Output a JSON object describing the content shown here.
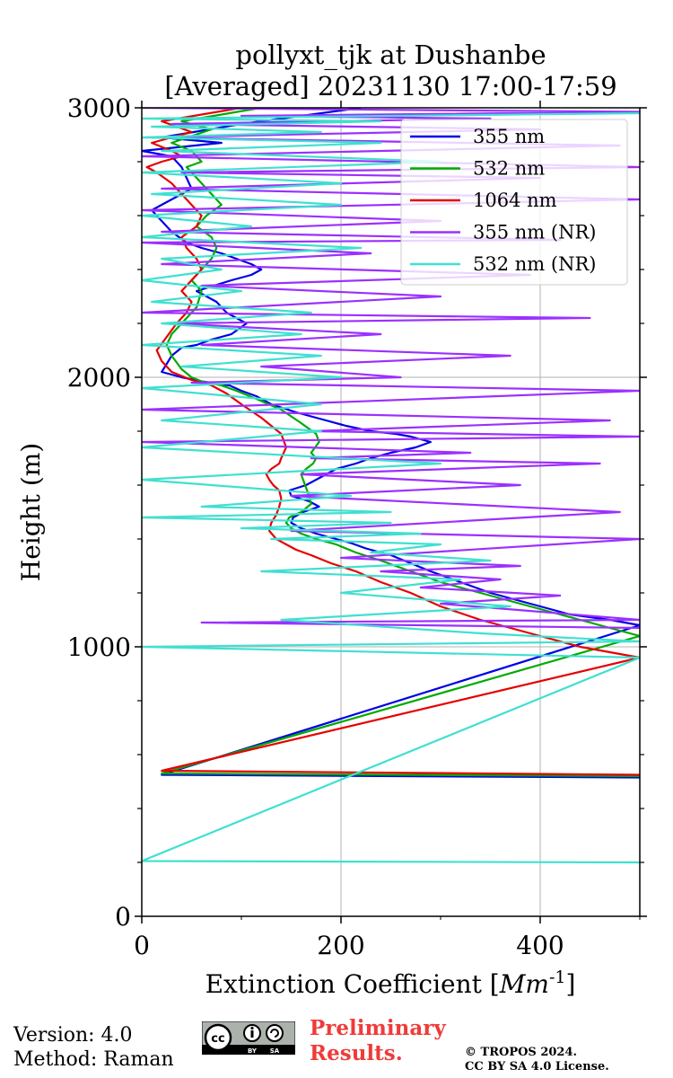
{
  "chart_data": {
    "type": "line",
    "title": "pollyxt_tjk at Dushanbe",
    "subtitle": "[Averaged] 20231130 17:00-17:59",
    "xlabel_prefix": "Extinction Coefficient [",
    "xlabel_unit": "Mm",
    "xlabel_exp": "-1",
    "xlabel_suffix": "]",
    "ylabel": "Height (m)",
    "xlim": [
      0,
      500
    ],
    "ylim": [
      0,
      3000
    ],
    "xticks": [
      "0",
      "200",
      "400"
    ],
    "yticks": [
      "0",
      "1000",
      "2000",
      "3000"
    ],
    "grid": true,
    "legend_position": "top-right",
    "series": [
      {
        "name": "355 nm",
        "color": "#0000e6",
        "x": [
          500,
          20,
          500,
          470,
          430,
          390,
          350,
          320,
          290,
          270,
          250,
          225,
          210,
          195,
          175,
          160,
          150,
          152,
          162,
          178,
          168,
          150,
          148,
          165,
          175,
          185,
          195,
          215,
          230,
          250,
          275,
          290,
          270,
          255,
          230,
          205,
          185,
          155,
          130,
          115,
          100,
          88,
          60,
          40,
          20,
          25,
          30,
          40,
          55,
          70,
          90,
          105,
          85,
          75,
          55,
          90,
          110,
          120,
          110,
          95,
          80,
          60,
          45,
          30,
          20,
          10,
          30,
          50,
          45,
          40,
          35,
          30,
          0,
          80,
          20,
          100,
          220
        ],
        "y": [
          515,
          525,
          1080,
          1100,
          1120,
          1160,
          1200,
          1240,
          1280,
          1310,
          1340,
          1365,
          1385,
          1400,
          1420,
          1440,
          1460,
          1480,
          1500,
          1520,
          1540,
          1560,
          1580,
          1600,
          1620,
          1640,
          1660,
          1680,
          1700,
          1720,
          1740,
          1760,
          1780,
          1790,
          1800,
          1820,
          1840,
          1870,
          1900,
          1930,
          1950,
          1970,
          1985,
          2000,
          2020,
          2050,
          2080,
          2110,
          2120,
          2140,
          2160,
          2200,
          2240,
          2280,
          2320,
          2360,
          2380,
          2400,
          2420,
          2440,
          2460,
          2480,
          2500,
          2540,
          2580,
          2620,
          2660,
          2700,
          2740,
          2780,
          2800,
          2820,
          2840,
          2870,
          2890,
          2940,
          3000
        ]
      },
      {
        "name": "532 nm",
        "color": "#00aa00",
        "x": [
          500,
          20,
          500,
          460,
          420,
          380,
          340,
          300,
          270,
          240,
          215,
          195,
          175,
          160,
          150,
          145,
          148,
          160,
          170,
          168,
          165,
          162,
          160,
          165,
          172,
          175,
          170,
          178,
          175,
          160,
          140,
          115,
          95,
          80,
          60,
          50,
          40,
          30,
          25,
          30,
          40,
          55,
          60,
          50,
          60,
          70,
          75,
          70,
          55,
          65,
          80,
          70,
          60,
          50,
          45,
          60,
          55,
          50,
          30,
          70,
          40,
          120
        ],
        "y": [
          520,
          530,
          1040,
          1080,
          1120,
          1160,
          1200,
          1240,
          1280,
          1320,
          1350,
          1380,
          1400,
          1420,
          1440,
          1460,
          1480,
          1500,
          1530,
          1560,
          1590,
          1620,
          1640,
          1660,
          1680,
          1700,
          1720,
          1760,
          1790,
          1830,
          1880,
          1920,
          1950,
          1970,
          1985,
          2000,
          2030,
          2080,
          2120,
          2160,
          2200,
          2260,
          2320,
          2360,
          2400,
          2440,
          2480,
          2520,
          2560,
          2600,
          2640,
          2680,
          2720,
          2760,
          2780,
          2800,
          2820,
          2840,
          2870,
          2920,
          2950,
          3000
        ]
      },
      {
        "name": "1064 nm",
        "color": "#e60000",
        "x": [
          500,
          20,
          500,
          440,
          390,
          340,
          300,
          270,
          240,
          215,
          190,
          170,
          155,
          145,
          135,
          128,
          130,
          135,
          138,
          140,
          138,
          132,
          128,
          125,
          130,
          138,
          140,
          145,
          140,
          120,
          100,
          85,
          70,
          50,
          30,
          20,
          15,
          25,
          35,
          45,
          50,
          40,
          50,
          60,
          55,
          45,
          40,
          55,
          60,
          50,
          40,
          30,
          15,
          5,
          20,
          40,
          30,
          10,
          50,
          20,
          100
        ],
        "y": [
          525,
          540,
          960,
          1000,
          1050,
          1100,
          1150,
          1200,
          1240,
          1280,
          1310,
          1340,
          1360,
          1380,
          1400,
          1430,
          1460,
          1490,
          1520,
          1550,
          1580,
          1600,
          1620,
          1640,
          1660,
          1680,
          1700,
          1740,
          1790,
          1850,
          1900,
          1940,
          1970,
          1990,
          2020,
          2060,
          2100,
          2150,
          2200,
          2240,
          2280,
          2320,
          2360,
          2400,
          2440,
          2480,
          2520,
          2560,
          2600,
          2640,
          2680,
          2720,
          2760,
          2780,
          2800,
          2820,
          2840,
          2870,
          2910,
          2950,
          3000
        ]
      },
      {
        "name": "355 nm (NR)",
        "color": "#9b30ff",
        "x": [
          500,
          60,
          500,
          400,
          300,
          420,
          280,
          360,
          240,
          380,
          200,
          500,
          150,
          480,
          150,
          380,
          160,
          460,
          170,
          330,
          0,
          500,
          170,
          470,
          0,
          500,
          50,
          260,
          120,
          370,
          60,
          240,
          30,
          450,
          0,
          300,
          60,
          390,
          20,
          230,
          0,
          420,
          20,
          300,
          0,
          500,
          20,
          400,
          40,
          500,
          0,
          480,
          10,
          400,
          30,
          350,
          100,
          500,
          0
        ],
        "y": [
          1070,
          1090,
          1100,
          1130,
          1160,
          1190,
          1220,
          1250,
          1280,
          1300,
          1330,
          1400,
          1430,
          1500,
          1560,
          1600,
          1640,
          1680,
          1700,
          1720,
          1760,
          1780,
          1800,
          1840,
          1880,
          1950,
          1980,
          2000,
          2040,
          2080,
          2120,
          2160,
          2200,
          2220,
          2240,
          2300,
          2340,
          2380,
          2420,
          2460,
          2500,
          2510,
          2540,
          2580,
          2620,
          2660,
          2700,
          2740,
          2760,
          2780,
          2820,
          2860,
          2890,
          2920,
          2940,
          2960,
          2970,
          2985,
          3000
        ]
      },
      {
        "name": "532 nm (NR)",
        "color": "#40e0d0",
        "x": [
          500,
          0,
          500,
          0,
          500,
          340,
          140,
          370,
          200,
          320,
          120,
          350,
          230,
          300,
          130,
          280,
          100,
          250,
          0,
          250,
          60,
          210,
          0,
          300,
          0,
          180,
          20,
          180,
          0,
          200,
          40,
          180,
          0,
          160,
          20,
          170,
          10,
          100,
          0,
          80,
          20,
          220,
          0,
          110,
          0,
          200,
          10,
          200,
          0,
          300,
          20,
          240,
          0,
          180,
          10,
          240,
          0,
          500
        ],
        "y": [
          200,
          205,
          960,
          1000,
          1020,
          1050,
          1100,
          1150,
          1200,
          1250,
          1280,
          1320,
          1350,
          1380,
          1400,
          1420,
          1440,
          1460,
          1480,
          1500,
          1520,
          1560,
          1620,
          1680,
          1740,
          1800,
          1840,
          1900,
          1960,
          2000,
          2040,
          2080,
          2120,
          2160,
          2200,
          2240,
          2280,
          2320,
          2360,
          2400,
          2440,
          2480,
          2520,
          2560,
          2600,
          2640,
          2680,
          2720,
          2760,
          2800,
          2840,
          2870,
          2890,
          2910,
          2930,
          2950,
          2960,
          2980
        ]
      }
    ]
  },
  "footer": {
    "version": "Version: 4.0",
    "method": "Method: Raman",
    "preliminary_line1": "Preliminary",
    "preliminary_line2": "Results.",
    "copyright_line1": "© TROPOS 2024.",
    "copyright_line2": "CC BY SA 4.0 License.",
    "license_badge": "cc-by-sa-badge"
  }
}
